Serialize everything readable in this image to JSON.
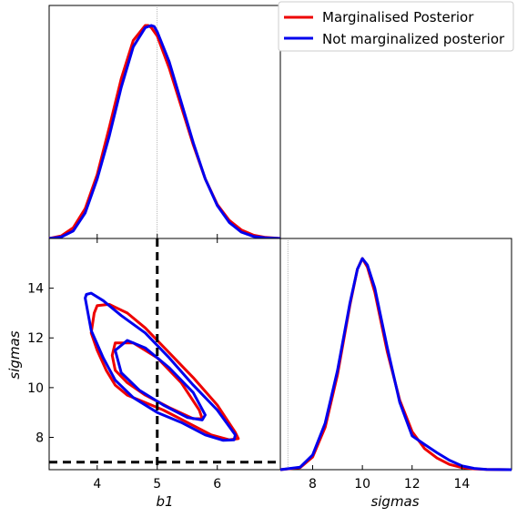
{
  "chart_data": {
    "type": "corner",
    "parameters": [
      "b1",
      "sigmas"
    ],
    "legend": {
      "placement": "top-right",
      "entries": [
        {
          "label": "Marginalised Posterior",
          "color": "#ee0000"
        },
        {
          "label": "Not marginalized posterior",
          "color": "#0000ee"
        }
      ]
    },
    "panels": {
      "b1_marginal": {
        "xlim": [
          3.2,
          7.05
        ],
        "truth": 5.0,
        "series": [
          {
            "name": "Marginalised Posterior",
            "color": "#ee0000",
            "x": [
              3.2,
              3.4,
              3.6,
              3.8,
              4.0,
              4.2,
              4.4,
              4.6,
              4.8,
              4.85,
              4.9,
              5.0,
              5.2,
              5.4,
              5.6,
              5.8,
              6.0,
              6.2,
              6.4,
              6.6,
              6.8,
              7.05
            ],
            "y": [
              0.0,
              0.012,
              0.05,
              0.14,
              0.3,
              0.52,
              0.75,
              0.93,
              1.0,
              1.0,
              0.99,
              0.95,
              0.8,
              0.62,
              0.44,
              0.28,
              0.16,
              0.085,
              0.04,
              0.016,
              0.005,
              0.0
            ]
          },
          {
            "name": "Not marginalized posterior",
            "color": "#0000ee",
            "x": [
              3.2,
              3.4,
              3.6,
              3.8,
              4.0,
              4.2,
              4.4,
              4.6,
              4.8,
              4.9,
              4.95,
              5.0,
              5.2,
              5.4,
              5.6,
              5.8,
              6.0,
              6.2,
              6.4,
              6.6,
              6.8,
              7.05
            ],
            "y": [
              0.0,
              0.007,
              0.035,
              0.12,
              0.28,
              0.48,
              0.71,
              0.9,
              0.99,
              1.0,
              0.995,
              0.97,
              0.83,
              0.64,
              0.45,
              0.28,
              0.155,
              0.075,
              0.03,
              0.01,
              0.003,
              0.0
            ]
          }
        ]
      },
      "joint": {
        "xlim": [
          3.2,
          7.05
        ],
        "ylim": [
          6.7,
          16.0
        ],
        "xticks": [
          4,
          5,
          6
        ],
        "yticks": [
          8,
          10,
          12,
          14
        ],
        "xlabel": "b1",
        "ylabel": "sigmas",
        "truth_x": 5.0,
        "truth_y": 7.0,
        "contours": [
          {
            "name": "Marginalised Posterior",
            "color": "#ee0000",
            "x": [
              3.9,
              3.95,
              4.0,
              4.2,
              4.5,
              4.8,
              5.2,
              5.6,
              6.0,
              6.3,
              6.35,
              6.2,
              5.9,
              5.5,
              5.1,
              4.8,
              4.5,
              4.3,
              4.15,
              4.0,
              3.9
            ],
            "y": [
              12.2,
              13.0,
              13.3,
              13.35,
              13.0,
              12.4,
              11.4,
              10.4,
              9.3,
              8.2,
              7.95,
              7.9,
              8.1,
              8.6,
              9.1,
              9.4,
              9.7,
              10.1,
              10.7,
              11.5,
              12.2
            ]
          },
          {
            "name": "Marginalised Posterior",
            "color": "#ee0000",
            "x": [
              4.25,
              4.3,
              4.6,
              5.0,
              5.4,
              5.7,
              5.75,
              5.6,
              5.2,
              4.8,
              4.5,
              4.3,
              4.25
            ],
            "y": [
              11.3,
              11.8,
              11.8,
              11.2,
              10.2,
              9.1,
              8.75,
              8.75,
              9.2,
              9.7,
              10.2,
              10.7,
              11.3
            ]
          },
          {
            "name": "Not marginalized posterior",
            "color": "#0000ee",
            "x": [
              3.8,
              3.82,
              3.9,
              4.1,
              4.4,
              4.8,
              5.2,
              5.6,
              6.0,
              6.3,
              6.28,
              6.1,
              5.8,
              5.4,
              5.0,
              4.6,
              4.3,
              4.1,
              3.9,
              3.8
            ],
            "y": [
              13.6,
              13.75,
              13.8,
              13.5,
              12.9,
              12.2,
              11.2,
              10.1,
              9.1,
              8.1,
              7.9,
              7.88,
              8.1,
              8.6,
              9.0,
              9.6,
              10.3,
              11.2,
              12.3,
              13.6
            ]
          },
          {
            "name": "Not marginalized posterior",
            "color": "#0000ee",
            "x": [
              4.3,
              4.5,
              4.8,
              5.2,
              5.6,
              5.8,
              5.75,
              5.5,
              5.1,
              4.7,
              4.4,
              4.3
            ],
            "y": [
              11.5,
              11.9,
              11.6,
              10.8,
              9.8,
              8.9,
              8.7,
              8.8,
              9.3,
              9.9,
              10.6,
              11.5
            ]
          }
        ]
      },
      "sigmas_marginal": {
        "xlim": [
          6.7,
          16.0
        ],
        "xticks": [
          8,
          10,
          12,
          14
        ],
        "xlabel": "sigmas",
        "truth": 7.0,
        "series": [
          {
            "name": "Marginalised Posterior",
            "color": "#ee0000",
            "x": [
              6.7,
              7.5,
              8.0,
              8.5,
              9.0,
              9.5,
              9.8,
              10.0,
              10.2,
              10.5,
              11.0,
              11.5,
              12.0,
              12.5,
              13.0,
              13.5,
              14.0,
              14.5,
              15.0,
              16.0
            ],
            "y": [
              0.0,
              0.01,
              0.06,
              0.2,
              0.45,
              0.78,
              0.95,
              1.0,
              0.96,
              0.84,
              0.56,
              0.33,
              0.18,
              0.1,
              0.055,
              0.025,
              0.01,
              0.004,
              0.001,
              0.0
            ]
          },
          {
            "name": "Not marginalized posterior",
            "color": "#0000ee",
            "x": [
              6.7,
              7.5,
              8.0,
              8.5,
              9.0,
              9.5,
              9.8,
              10.0,
              10.2,
              10.5,
              11.0,
              11.5,
              12.0,
              12.5,
              13.0,
              13.5,
              14.0,
              14.5,
              15.0,
              16.0
            ],
            "y": [
              0.0,
              0.012,
              0.07,
              0.22,
              0.47,
              0.79,
              0.95,
              1.0,
              0.97,
              0.86,
              0.58,
              0.32,
              0.16,
              0.12,
              0.08,
              0.045,
              0.018,
              0.006,
              0.001,
              0.0
            ]
          }
        ]
      }
    }
  }
}
